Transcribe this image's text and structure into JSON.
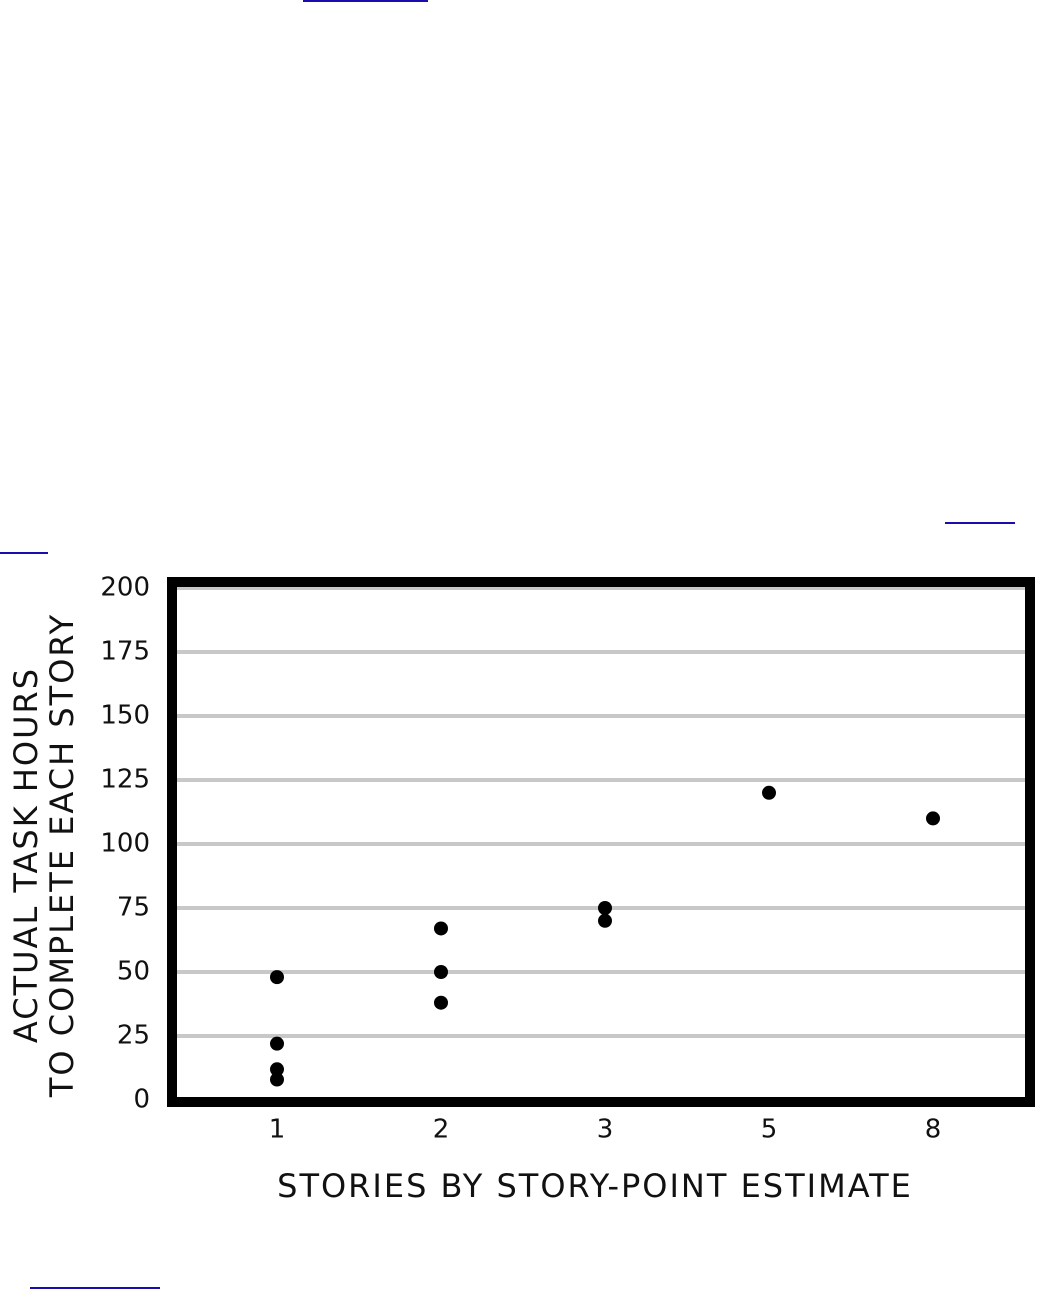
{
  "chart_data": {
    "type": "scatter",
    "xlabel": "STORIES BY STORY-POINT ESTIMATE",
    "ylabel": [
      "ACTUAL TASK HOURS",
      "TO COMPLETE EACH STORY"
    ],
    "categories": [
      "1",
      "2",
      "3",
      "5",
      "8"
    ],
    "x": [
      "1",
      "1",
      "1",
      "1",
      "2",
      "2",
      "2",
      "3",
      "3",
      "5",
      "8"
    ],
    "y": [
      48,
      22,
      12,
      8,
      67,
      50,
      38,
      75,
      70,
      120,
      110
    ],
    "color": "#000000",
    "ylim": [
      0,
      200
    ],
    "yticks": [
      0,
      25,
      50,
      75,
      100,
      125,
      150,
      175,
      200
    ],
    "grid": true
  }
}
